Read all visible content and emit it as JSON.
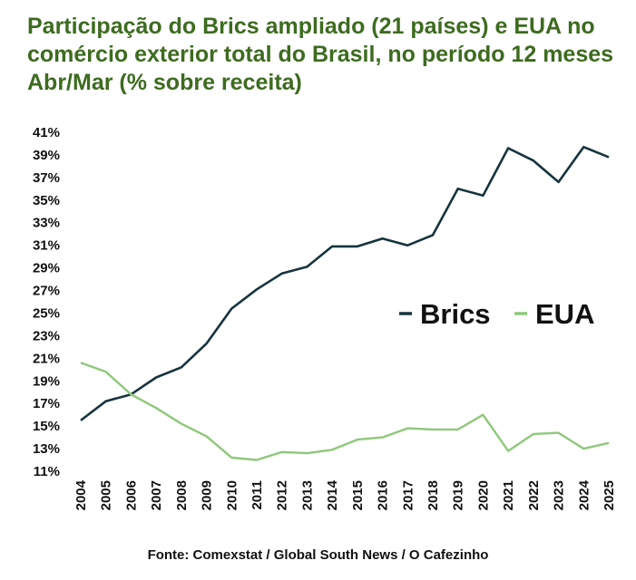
{
  "title": "Participação do Brics ampliado (21 países) e EUA no comércio exterior total do Brasil, no período 12 meses Abr/Mar (% sobre receita)",
  "source": "Fonte: Comexstat / Global South News / O Cafezinho",
  "chart_data": {
    "type": "line",
    "title": "Participação do Brics ampliado (21 países) e EUA no comércio exterior total do Brasil, no período 12 meses Abr/Mar (% sobre receita)",
    "xlabel": "",
    "ylabel": "",
    "x": [
      "2004",
      "2005",
      "2006",
      "2007",
      "2008",
      "2009",
      "2010",
      "2011",
      "2012",
      "2013",
      "2014",
      "2015",
      "2016",
      "2017",
      "2018",
      "2019",
      "2020",
      "2021",
      "2022",
      "2023",
      "2024",
      "2025"
    ],
    "ylim": [
      11,
      41
    ],
    "yticks": [
      "11%",
      "13%",
      "15%",
      "17%",
      "19%",
      "21%",
      "23%",
      "25%",
      "27%",
      "29%",
      "31%",
      "33%",
      "35%",
      "37%",
      "39%",
      "41%"
    ],
    "grid": false,
    "legend_placement": "right",
    "series": [
      {
        "name": "Brics",
        "color": "#16333d",
        "values": [
          15.5,
          17.2,
          17.8,
          19.3,
          20.2,
          22.3,
          25.4,
          27.1,
          28.5,
          29.1,
          30.9,
          30.9,
          31.6,
          31.0,
          31.9,
          36.0,
          35.4,
          39.6,
          38.5,
          36.6,
          39.7,
          38.8
        ]
      },
      {
        "name": "EUA",
        "color": "#8ec87a",
        "values": [
          20.6,
          19.8,
          17.8,
          16.6,
          15.2,
          14.1,
          12.2,
          12.0,
          12.7,
          12.6,
          12.9,
          13.8,
          14.0,
          14.8,
          14.7,
          14.7,
          16.0,
          12.8,
          14.3,
          14.4,
          13.0,
          13.5
        ]
      }
    ]
  }
}
